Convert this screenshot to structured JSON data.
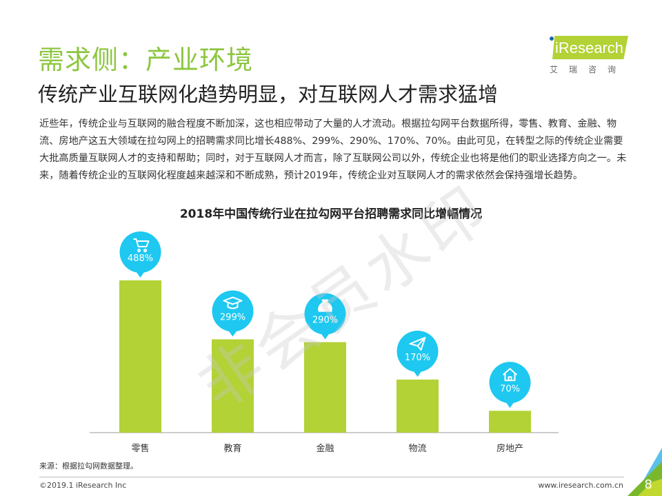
{
  "header": {
    "title": "需求侧：产业环境",
    "subtitle": "传统产业互联网化趋势明显，对互联网人才需求猛增"
  },
  "logo": {
    "name": "iResearch",
    "cn": "艾瑞咨询"
  },
  "paragraph": "近些年，传统企业与互联网的融合程度不断加深，这也相应带动了大量的人才流动。根据拉勾网平台数据所得，零售、教育、金融、物流、房地产这五大领域在拉勾网上的招聘需求同比增长488%、299%、290%、170%、70%。由此可见，在转型之际的传统企业需要大批高质量互联网人才的支持和帮助；同时，对于互联网人才而言，除了互联网公司以外，传统企业也将是他们的职业选择方向之一。未来，随着传统企业的互联网化程度越来越深和不断成熟，预计2019年，传统企业对互联网人才的需求依然会保持强增长趋势。",
  "watermark": "非会员水印",
  "chart_data": {
    "type": "bar",
    "title": "2018年中国传统行业在拉勾网平台招聘需求同比增幅情况",
    "categories": [
      "零售",
      "教育",
      "金融",
      "物流",
      "房地产"
    ],
    "values": [
      488,
      299,
      290,
      170,
      70
    ],
    "labels": [
      "488%",
      "299%",
      "290%",
      "170%",
      "70%"
    ],
    "icons": [
      "shopping-cart-icon",
      "graduation-cap-icon",
      "money-bag-icon",
      "paper-plane-icon",
      "house-icon"
    ],
    "unit": "%",
    "ylim": [
      0,
      488
    ],
    "grid": false,
    "colors": {
      "bar": "#b2d235",
      "bubble": "#1ec8f0"
    }
  },
  "footer": {
    "source": "来源：根据拉勾网数据整理。",
    "copyright": "©2019.1 iResearch Inc",
    "website": "www.iresearch.com.cn",
    "page": "8"
  }
}
